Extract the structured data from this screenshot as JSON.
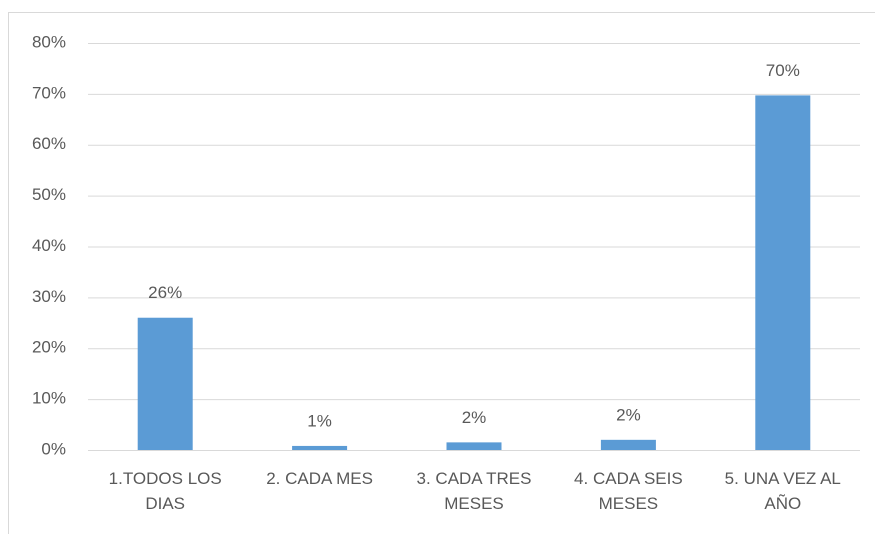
{
  "chart_data": {
    "type": "bar",
    "categories": [
      "1.TODOS LOS DIAS",
      "2. CADA MES",
      "3. CADA TRES MESES",
      "4. CADA SEIS MESES",
      "5. UNA VEZ AL AÑO"
    ],
    "values": [
      26,
      0.8,
      1.5,
      2,
      69.7
    ],
    "value_labels": [
      "26%",
      "1%",
      "2%",
      "2%",
      "70%"
    ],
    "color": "#5b9bd5",
    "ylim": [
      0,
      80
    ],
    "yticks": [
      {
        "value": 0,
        "label": "0%"
      },
      {
        "value": 10,
        "label": "10%"
      },
      {
        "value": 20,
        "label": "20%"
      },
      {
        "value": 30,
        "label": "30%"
      },
      {
        "value": 40,
        "label": "40%"
      },
      {
        "value": 50,
        "label": "50%"
      },
      {
        "value": 60,
        "label": "60%"
      },
      {
        "value": 70,
        "label": "70%"
      },
      {
        "value": 80,
        "label": "80%"
      }
    ],
    "grid": true
  }
}
